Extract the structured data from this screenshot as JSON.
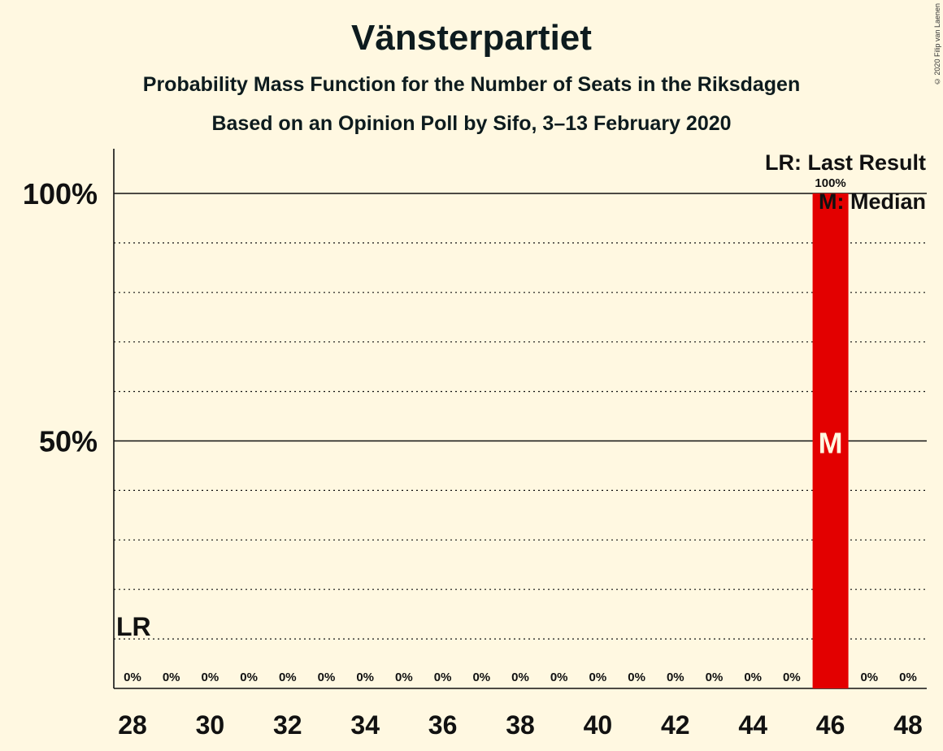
{
  "header": {
    "title": "Vänsterpartiet",
    "subtitle1": "Probability Mass Function for the Number of Seats in the Riksdagen",
    "subtitle2": "Based on an Opinion Poll by Sifo, 3–13 February 2020",
    "copyright": "© 2020 Filip van Laenen"
  },
  "legend": {
    "lr": "LR: Last Result",
    "median": "M: Median"
  },
  "colors": {
    "background": "#FFF8E1",
    "bar": "#E30000",
    "text": "#111111"
  },
  "chart_data": {
    "type": "bar",
    "x": [
      28,
      29,
      30,
      31,
      32,
      33,
      34,
      35,
      36,
      37,
      38,
      39,
      40,
      41,
      42,
      43,
      44,
      45,
      46,
      47,
      48
    ],
    "values": [
      0,
      0,
      0,
      0,
      0,
      0,
      0,
      0,
      0,
      0,
      0,
      0,
      0,
      0,
      0,
      0,
      0,
      0,
      100,
      0,
      0
    ],
    "value_labels": [
      "0%",
      "0%",
      "0%",
      "0%",
      "0%",
      "0%",
      "0%",
      "0%",
      "0%",
      "0%",
      "0%",
      "0%",
      "0%",
      "0%",
      "0%",
      "0%",
      "0%",
      "0%",
      "100%",
      "0%",
      "0%"
    ],
    "x_tick_labels": [
      "28",
      "30",
      "32",
      "34",
      "36",
      "38",
      "40",
      "42",
      "44",
      "46",
      "48"
    ],
    "x_tick_values": [
      28,
      30,
      32,
      34,
      36,
      38,
      40,
      42,
      44,
      46,
      48
    ],
    "y_tick_labels": [
      "50%",
      "100%"
    ],
    "y_tick_values": [
      50,
      100
    ],
    "ylim": [
      0,
      100
    ],
    "gridlines": [
      10,
      20,
      30,
      40,
      60,
      70,
      80,
      90
    ],
    "last_result": 28,
    "last_result_label": "LR",
    "median": 46,
    "median_label": "M",
    "unit": "%"
  }
}
